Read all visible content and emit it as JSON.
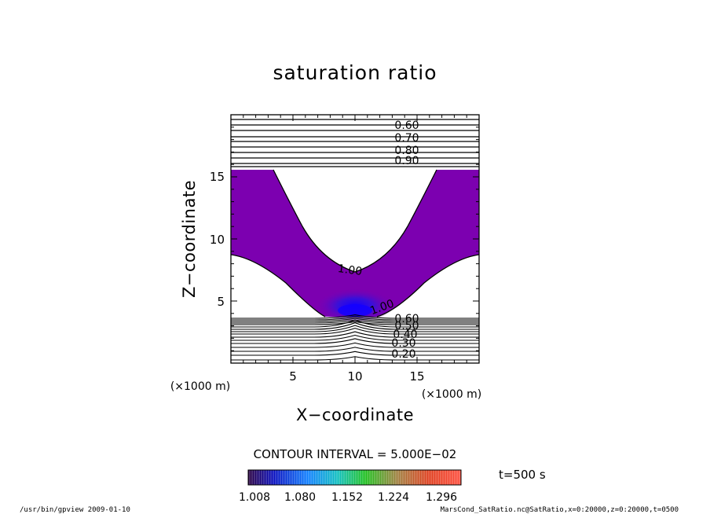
{
  "chart_data": {
    "type": "contour",
    "title": "saturation ratio",
    "xlabel": "X−coordinate",
    "ylabel": "Z−coordinate",
    "x_unit": "(×1000 m)",
    "y_unit": "(×1000 m)",
    "xlim": [
      0,
      20
    ],
    "ylim": [
      0,
      20
    ],
    "x_ticks": [
      "5",
      "10",
      "15"
    ],
    "y_ticks": [
      "5",
      "10",
      "15"
    ],
    "contour_labels_upper": [
      "0.60",
      "0.70",
      "0.80",
      "0.90"
    ],
    "contour_labels_mid": [
      "1.00",
      "1.00"
    ],
    "contour_labels_lower": [
      "0.60",
      "0.50",
      "0.40",
      "0.30",
      "0.20"
    ],
    "contour_interval_text": "CONTOUR INTERVAL = 5.000E−02",
    "time_text": "t=500 s",
    "colorbar_ticks": [
      "1.008",
      "1.080",
      "1.152",
      "1.224",
      "1.296"
    ],
    "colors": {
      "fill_main": "#7c00b0",
      "fill_core": "#1400e8",
      "colorbar_start": "#1a0050",
      "colorbar_end": "#ff3020"
    }
  },
  "footer": {
    "left": "/usr/bin/gpview   2009-01-10",
    "right": "MarsCond_SatRatio.nc@SatRatio,x=0:20000,z=0:20000,t=0500"
  }
}
